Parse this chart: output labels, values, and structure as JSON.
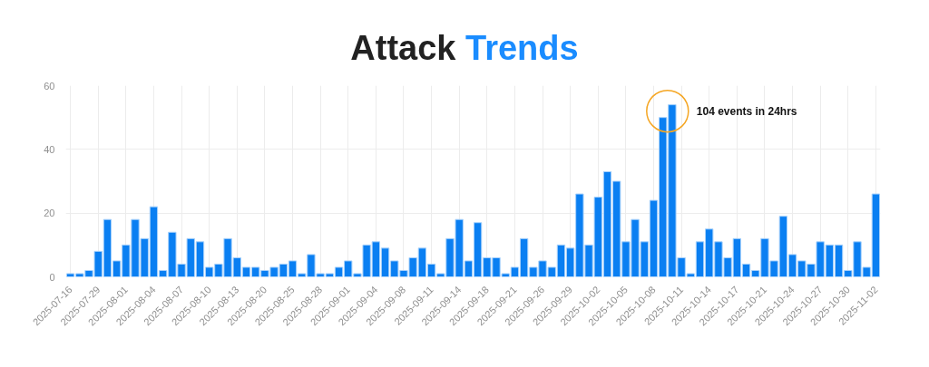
{
  "chart_data": {
    "type": "bar",
    "title": "Attack Trends",
    "categories": [
      "2025-07-16",
      null,
      null,
      "2025-07-29",
      null,
      null,
      "2025-08-01",
      null,
      null,
      "2025-08-04",
      null,
      null,
      "2025-08-07",
      null,
      null,
      "2025-08-10",
      null,
      null,
      "2025-08-13",
      null,
      null,
      "2025-08-20",
      null,
      null,
      "2025-08-25",
      null,
      null,
      "2025-08-28",
      null,
      null,
      "2025-09-01",
      null,
      null,
      "2025-09-04",
      null,
      null,
      "2025-09-08",
      null,
      null,
      "2025-09-11",
      null,
      null,
      "2025-09-14",
      null,
      null,
      "2025-09-18",
      null,
      null,
      "2025-09-21",
      null,
      null,
      "2025-09-26",
      null,
      null,
      "2025-09-29",
      null,
      null,
      "2025-10-02",
      null,
      null,
      "2025-10-05",
      null,
      null,
      "2025-10-08",
      null,
      null,
      "2025-10-11",
      null,
      null,
      "2025-10-14",
      null,
      null,
      "2025-10-17",
      null,
      null,
      "2025-10-21",
      null,
      null,
      "2025-10-24",
      null,
      null,
      "2025-10-27",
      null,
      null,
      "2025-10-30",
      null,
      null,
      "2025-11-02"
    ],
    "values": [
      1,
      1,
      2,
      8,
      18,
      5,
      10,
      18,
      12,
      22,
      2,
      14,
      4,
      12,
      11,
      3,
      4,
      12,
      6,
      3,
      3,
      2,
      3,
      4,
      5,
      1,
      7,
      1,
      1,
      3,
      5,
      1,
      10,
      11,
      9,
      5,
      2,
      6,
      9,
      4,
      1,
      12,
      18,
      5,
      17,
      6,
      6,
      1,
      3,
      12,
      3,
      5,
      3,
      10,
      9,
      26,
      10,
      25,
      33,
      30,
      11,
      18,
      11,
      24,
      50,
      54,
      6,
      1,
      11,
      15,
      11,
      6,
      12,
      4,
      2,
      12,
      5,
      19,
      7,
      5,
      4,
      11,
      10,
      10,
      2,
      11,
      3,
      26
    ],
    "color": "#0a7ff2",
    "ylim": [
      0,
      60
    ],
    "yticks": [
      0,
      20,
      40,
      60
    ],
    "grid": true,
    "annotations": [
      "104 events in 24hrs"
    ]
  }
}
